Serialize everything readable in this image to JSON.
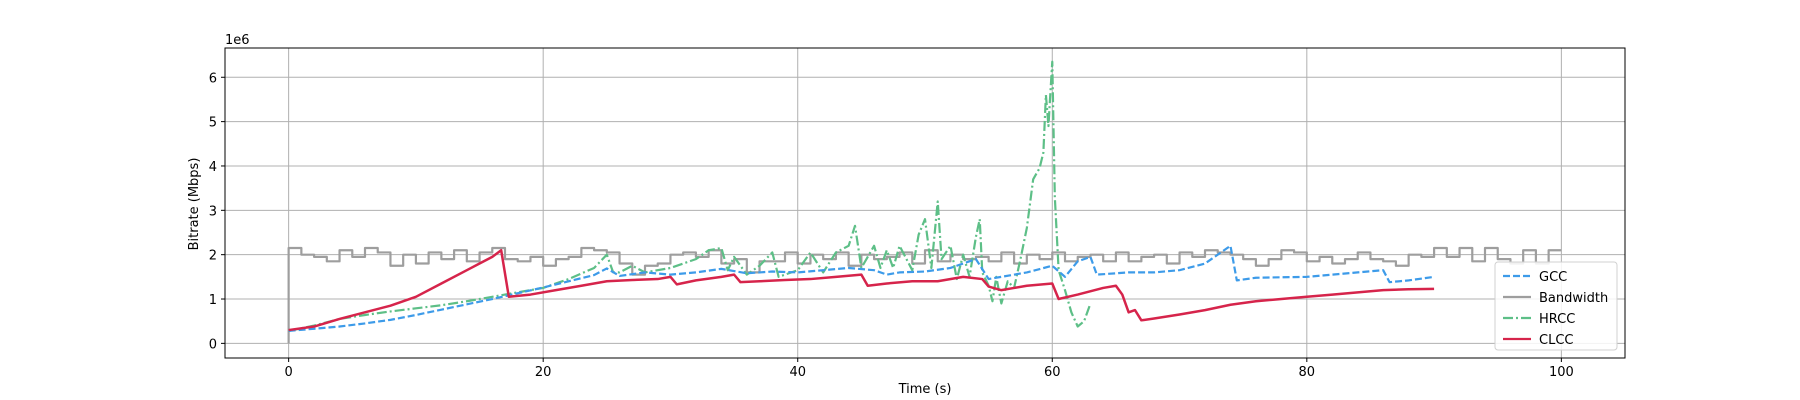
{
  "chart_data": {
    "type": "line",
    "title": "",
    "xlabel": "Time (s)",
    "ylabel": "Bitrate (Mbps)",
    "y_offset_label": "1e6",
    "xlim": [
      -5,
      105
    ],
    "ylim": [
      -330000.0,
      6660000.0
    ],
    "x_ticks": [
      0,
      20,
      40,
      60,
      80,
      100
    ],
    "y_ticks": [
      0,
      1000000,
      2000000,
      3000000,
      4000000,
      5000000,
      6000000
    ],
    "x_tick_labels": [
      "0",
      "20",
      "40",
      "60",
      "80",
      "100"
    ],
    "y_tick_labels": [
      "0",
      "1",
      "2",
      "3",
      "4",
      "5",
      "6"
    ],
    "grid": true,
    "legend_position": "lower-right",
    "series": [
      {
        "name": "GCC",
        "color": "#3d9be9",
        "style": "dashed",
        "points": [
          [
            0,
            280000
          ],
          [
            2,
            330000
          ],
          [
            4,
            380000
          ],
          [
            6,
            450000
          ],
          [
            8,
            530000
          ],
          [
            10,
            640000
          ],
          [
            12,
            760000
          ],
          [
            14,
            880000
          ],
          [
            16,
            1000000
          ],
          [
            18,
            1130000
          ],
          [
            20,
            1260000
          ],
          [
            22,
            1400000
          ],
          [
            24,
            1540000
          ],
          [
            25,
            1690000
          ],
          [
            26,
            1520000
          ],
          [
            28,
            1600000
          ],
          [
            30,
            1550000
          ],
          [
            32,
            1600000
          ],
          [
            34,
            1680000
          ],
          [
            36,
            1580000
          ],
          [
            38,
            1620000
          ],
          [
            40,
            1600000
          ],
          [
            42,
            1650000
          ],
          [
            44,
            1700000
          ],
          [
            46,
            1650000
          ],
          [
            47,
            1550000
          ],
          [
            48,
            1600000
          ],
          [
            50,
            1620000
          ],
          [
            52,
            1700000
          ],
          [
            54,
            1900000
          ],
          [
            55,
            1450000
          ],
          [
            56,
            1500000
          ],
          [
            58,
            1600000
          ],
          [
            60,
            1750000
          ],
          [
            61,
            1500000
          ],
          [
            62,
            1850000
          ],
          [
            63,
            1950000
          ],
          [
            63.5,
            1550000
          ],
          [
            66,
            1600000
          ],
          [
            68,
            1600000
          ],
          [
            70,
            1650000
          ],
          [
            72,
            1800000
          ],
          [
            74,
            2200000
          ],
          [
            74.5,
            1420000
          ],
          [
            76,
            1480000
          ],
          [
            80,
            1500000
          ],
          [
            84,
            1600000
          ],
          [
            86,
            1650000
          ],
          [
            86.5,
            1380000
          ],
          [
            88,
            1420000
          ],
          [
            90,
            1500000
          ]
        ]
      },
      {
        "name": "Bandwidth",
        "color": "#9e9e9e",
        "style": "step",
        "points": [
          [
            0,
            0
          ],
          [
            0,
            2150000
          ],
          [
            1,
            2000000
          ],
          [
            2,
            1950000
          ],
          [
            3,
            1850000
          ],
          [
            4,
            2100000
          ],
          [
            5,
            1950000
          ],
          [
            6,
            2150000
          ],
          [
            7,
            2050000
          ],
          [
            8,
            1750000
          ],
          [
            9,
            2000000
          ],
          [
            10,
            1800000
          ],
          [
            11,
            2050000
          ],
          [
            12,
            1900000
          ],
          [
            13,
            2100000
          ],
          [
            14,
            1850000
          ],
          [
            15,
            2050000
          ],
          [
            16,
            2150000
          ],
          [
            17,
            1900000
          ],
          [
            18,
            1850000
          ],
          [
            19,
            1950000
          ],
          [
            20,
            1750000
          ],
          [
            21,
            1900000
          ],
          [
            22,
            1950000
          ],
          [
            23,
            2150000
          ],
          [
            24,
            2100000
          ],
          [
            25,
            2050000
          ],
          [
            26,
            1800000
          ],
          [
            27,
            1550000
          ],
          [
            28,
            1750000
          ],
          [
            29,
            1800000
          ],
          [
            30,
            2000000
          ],
          [
            31,
            2050000
          ],
          [
            32,
            1950000
          ],
          [
            33,
            2100000
          ],
          [
            34,
            1800000
          ],
          [
            35,
            1900000
          ],
          [
            36,
            1600000
          ],
          [
            37,
            1850000
          ],
          [
            38,
            1850000
          ],
          [
            39,
            2050000
          ],
          [
            40,
            1800000
          ],
          [
            41,
            2000000
          ],
          [
            42,
            1900000
          ],
          [
            43,
            2050000
          ],
          [
            44,
            1750000
          ],
          [
            45,
            2000000
          ],
          [
            46,
            1900000
          ],
          [
            47,
            1950000
          ],
          [
            48,
            2050000
          ],
          [
            49,
            1800000
          ],
          [
            50,
            2100000
          ],
          [
            51,
            1850000
          ],
          [
            52,
            2000000
          ],
          [
            53,
            1900000
          ],
          [
            54,
            1950000
          ],
          [
            55,
            1850000
          ],
          [
            56,
            2050000
          ],
          [
            57,
            1800000
          ],
          [
            58,
            2000000
          ],
          [
            59,
            1900000
          ],
          [
            60,
            2050000
          ],
          [
            61,
            1850000
          ],
          [
            62,
            1950000
          ],
          [
            63,
            2000000
          ],
          [
            64,
            1850000
          ],
          [
            65,
            2050000
          ],
          [
            66,
            1850000
          ],
          [
            67,
            1950000
          ],
          [
            68,
            2000000
          ],
          [
            69,
            1800000
          ],
          [
            70,
            2050000
          ],
          [
            71,
            1950000
          ],
          [
            72,
            2100000
          ],
          [
            73,
            2050000
          ],
          [
            74,
            2000000
          ],
          [
            75,
            1900000
          ],
          [
            76,
            1750000
          ],
          [
            77,
            1900000
          ],
          [
            78,
            2100000
          ],
          [
            79,
            2050000
          ],
          [
            80,
            1850000
          ],
          [
            81,
            1950000
          ],
          [
            82,
            1800000
          ],
          [
            83,
            1900000
          ],
          [
            84,
            2050000
          ],
          [
            85,
            1900000
          ],
          [
            86,
            1850000
          ],
          [
            87,
            1750000
          ],
          [
            88,
            2000000
          ],
          [
            89,
            1950000
          ],
          [
            90,
            2150000
          ],
          [
            91,
            1950000
          ],
          [
            92,
            2150000
          ],
          [
            93,
            1850000
          ],
          [
            94,
            2150000
          ],
          [
            95,
            1900000
          ],
          [
            96,
            1800000
          ],
          [
            97,
            2100000
          ],
          [
            98,
            1800000
          ],
          [
            99,
            2100000
          ],
          [
            100,
            2100000
          ]
        ]
      },
      {
        "name": "HRCC",
        "color": "#5dbf87",
        "style": "dashdot",
        "points": [
          [
            0,
            280000
          ],
          [
            2,
            400000
          ],
          [
            4,
            550000
          ],
          [
            6,
            640000
          ],
          [
            8,
            720000
          ],
          [
            10,
            790000
          ],
          [
            12,
            860000
          ],
          [
            14,
            950000
          ],
          [
            16,
            1050000
          ],
          [
            18,
            1150000
          ],
          [
            20,
            1250000
          ],
          [
            22,
            1450000
          ],
          [
            24,
            1700000
          ],
          [
            25,
            2000000
          ],
          [
            25.5,
            1600000
          ],
          [
            26,
            1600000
          ],
          [
            27,
            1750000
          ],
          [
            28,
            1600000
          ],
          [
            30,
            1700000
          ],
          [
            32,
            1900000
          ],
          [
            33,
            2100000
          ],
          [
            34,
            2150000
          ],
          [
            34.5,
            1650000
          ],
          [
            35,
            1950000
          ],
          [
            36,
            1550000
          ],
          [
            37,
            1750000
          ],
          [
            38,
            2050000
          ],
          [
            38.5,
            1500000
          ],
          [
            40,
            1650000
          ],
          [
            41,
            2050000
          ],
          [
            42,
            1600000
          ],
          [
            43,
            2050000
          ],
          [
            44,
            2200000
          ],
          [
            44.5,
            2650000
          ],
          [
            45,
            1700000
          ],
          [
            46,
            2200000
          ],
          [
            46.5,
            1700000
          ],
          [
            47,
            2100000
          ],
          [
            47.5,
            1700000
          ],
          [
            48,
            2200000
          ],
          [
            49,
            1650000
          ],
          [
            49.5,
            2450000
          ],
          [
            50,
            2800000
          ],
          [
            50.5,
            1700000
          ],
          [
            51,
            3200000
          ],
          [
            51.3,
            1900000
          ],
          [
            52,
            2200000
          ],
          [
            52.5,
            1450000
          ],
          [
            53,
            2000000
          ],
          [
            53.5,
            1500000
          ],
          [
            54,
            2400000
          ],
          [
            54.3,
            2800000
          ],
          [
            54.5,
            1600000
          ],
          [
            55,
            1300000
          ],
          [
            55.3,
            950000
          ],
          [
            55.6,
            1500000
          ],
          [
            56,
            900000
          ],
          [
            56.5,
            1400000
          ],
          [
            57,
            1250000
          ],
          [
            57.5,
            1900000
          ],
          [
            58,
            2600000
          ],
          [
            58.5,
            3700000
          ],
          [
            59,
            3950000
          ],
          [
            59.3,
            4300000
          ],
          [
            59.5,
            5600000
          ],
          [
            59.7,
            4900000
          ],
          [
            59.8,
            5400000
          ],
          [
            60,
            6350000
          ],
          [
            60.2,
            3300000
          ],
          [
            60.5,
            1650000
          ],
          [
            61,
            1200000
          ],
          [
            61.5,
            700000
          ],
          [
            62,
            380000
          ],
          [
            62.5,
            500000
          ],
          [
            63,
            900000
          ]
        ]
      },
      {
        "name": "CLCC",
        "color": "#d6244b",
        "style": "solid",
        "points": [
          [
            0,
            300000
          ],
          [
            2,
            380000
          ],
          [
            4,
            550000
          ],
          [
            6,
            700000
          ],
          [
            8,
            850000
          ],
          [
            10,
            1050000
          ],
          [
            12,
            1350000
          ],
          [
            14,
            1650000
          ],
          [
            15,
            1800000
          ],
          [
            16,
            1950000
          ],
          [
            16.7,
            2100000
          ],
          [
            17.3,
            1050000
          ],
          [
            19,
            1100000
          ],
          [
            21,
            1200000
          ],
          [
            23,
            1300000
          ],
          [
            25,
            1400000
          ],
          [
            27,
            1430000
          ],
          [
            29,
            1450000
          ],
          [
            30,
            1500000
          ],
          [
            30.5,
            1330000
          ],
          [
            32,
            1420000
          ],
          [
            34,
            1500000
          ],
          [
            35,
            1550000
          ],
          [
            35.5,
            1380000
          ],
          [
            37,
            1400000
          ],
          [
            39,
            1430000
          ],
          [
            41,
            1450000
          ],
          [
            43,
            1500000
          ],
          [
            45,
            1550000
          ],
          [
            45.5,
            1300000
          ],
          [
            47,
            1350000
          ],
          [
            49,
            1400000
          ],
          [
            51,
            1400000
          ],
          [
            53,
            1500000
          ],
          [
            54.5,
            1450000
          ],
          [
            55,
            1280000
          ],
          [
            56,
            1200000
          ],
          [
            57,
            1250000
          ],
          [
            58,
            1300000
          ],
          [
            60,
            1350000
          ],
          [
            60.5,
            1000000
          ],
          [
            62,
            1100000
          ],
          [
            64,
            1250000
          ],
          [
            65,
            1300000
          ],
          [
            65.5,
            1100000
          ],
          [
            66,
            700000
          ],
          [
            66.5,
            750000
          ],
          [
            67,
            520000
          ],
          [
            68,
            560000
          ],
          [
            70,
            650000
          ],
          [
            72,
            750000
          ],
          [
            74,
            870000
          ],
          [
            76,
            950000
          ],
          [
            78,
            1000000
          ],
          [
            80,
            1050000
          ],
          [
            82,
            1100000
          ],
          [
            84,
            1150000
          ],
          [
            86,
            1200000
          ],
          [
            88,
            1220000
          ],
          [
            90,
            1230000
          ]
        ]
      }
    ]
  }
}
